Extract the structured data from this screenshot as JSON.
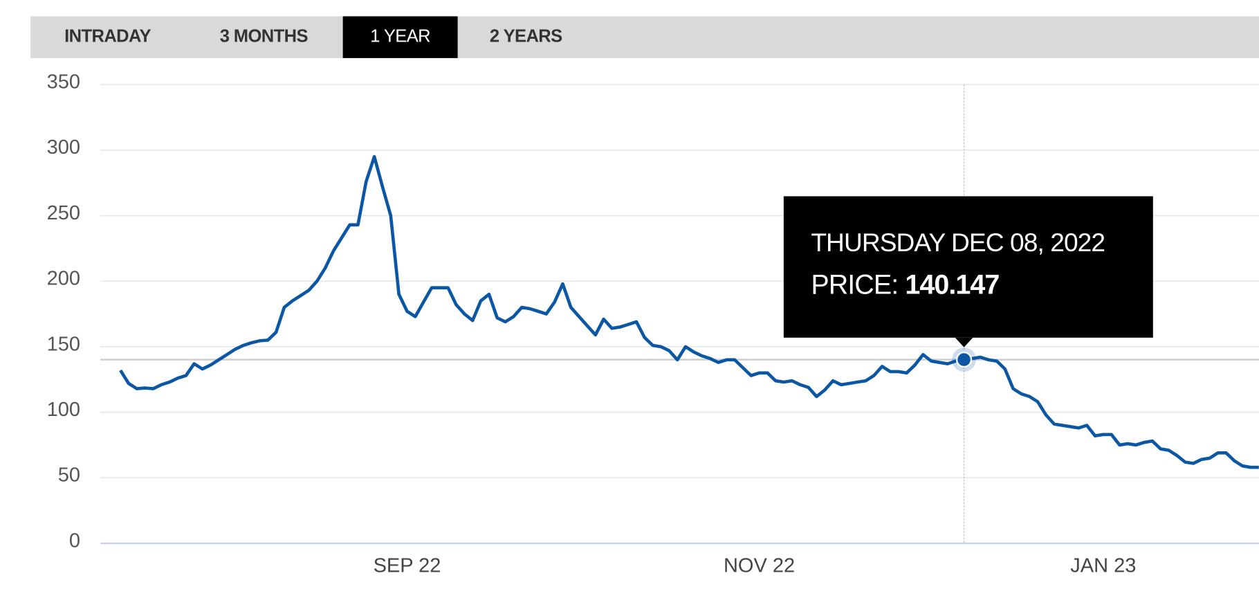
{
  "tabs": {
    "items": [
      "INTRADAY",
      "3 MONTHS",
      "1 YEAR",
      "2 YEARS"
    ],
    "active": 2
  },
  "chart_data": {
    "type": "line",
    "categories": [
      null,
      null,
      null,
      null,
      null,
      null,
      null,
      null,
      null,
      null,
      null,
      null,
      null,
      null,
      null,
      null,
      null,
      null,
      null,
      null,
      null,
      null,
      null,
      null,
      null,
      null,
      null,
      null,
      null,
      null,
      null,
      null,
      null,
      null,
      null,
      "SEP 22",
      null,
      null,
      null,
      null,
      null,
      null,
      null,
      null,
      null,
      null,
      null,
      null,
      null,
      null,
      null,
      null,
      null,
      null,
      null,
      null,
      null,
      null,
      null,
      null,
      null,
      null,
      null,
      null,
      null,
      null,
      null,
      null,
      null,
      null,
      null,
      null,
      null,
      null,
      null,
      null,
      null,
      null,
      "NOV 22",
      null,
      null,
      null,
      null,
      null,
      null,
      null,
      null,
      null,
      null,
      null,
      null,
      null,
      null,
      null,
      null,
      null,
      null,
      null,
      null,
      null,
      null,
      null,
      null,
      null,
      null,
      null,
      null,
      null,
      null,
      null,
      null,
      null,
      null,
      null,
      null,
      null,
      null,
      null,
      null,
      null,
      "JAN 23",
      null,
      null,
      null,
      null,
      null,
      null,
      null,
      null,
      null,
      null,
      null,
      null,
      null,
      null,
      null,
      null,
      null,
      null,
      null
    ],
    "values": [
      132,
      122,
      118,
      118.5,
      118,
      121,
      123,
      126,
      128,
      137,
      133,
      136,
      140,
      144,
      148,
      151,
      153,
      154.5,
      155,
      161,
      180,
      185,
      189,
      193,
      200,
      210,
      223,
      233,
      243,
      243,
      276,
      295,
      272,
      250,
      190,
      177,
      173,
      184,
      195,
      195,
      195,
      182,
      175,
      170,
      185,
      190,
      172,
      169,
      173,
      180,
      179,
      177,
      175,
      184,
      198,
      180,
      173,
      166,
      159,
      171,
      164,
      165,
      167,
      169,
      157,
      151,
      150,
      147,
      140,
      150,
      146,
      143,
      141,
      138,
      140,
      140,
      134,
      128,
      130,
      130,
      124,
      123,
      124,
      121,
      119,
      112,
      117,
      124,
      121,
      122,
      123,
      124,
      128,
      135,
      131,
      131,
      130,
      136,
      144,
      139,
      138,
      137,
      139,
      140.147,
      141,
      142,
      140,
      139,
      133,
      118,
      114,
      112,
      108,
      98,
      91,
      90,
      89,
      88,
      90,
      82,
      83,
      83,
      75,
      76,
      75,
      77,
      78,
      72,
      71,
      67,
      62,
      61,
      64,
      65,
      69,
      69,
      63,
      59,
      58,
      58
    ],
    "color": "#0b57a4",
    "ylim": [
      0,
      350
    ],
    "yticks": [
      0,
      50,
      100,
      150,
      200,
      250,
      300,
      350
    ],
    "grid": true,
    "tooltip": {
      "title": "THURSDAY DEC 08, 2022",
      "label": "PRICE:",
      "value": 140.147
    }
  }
}
